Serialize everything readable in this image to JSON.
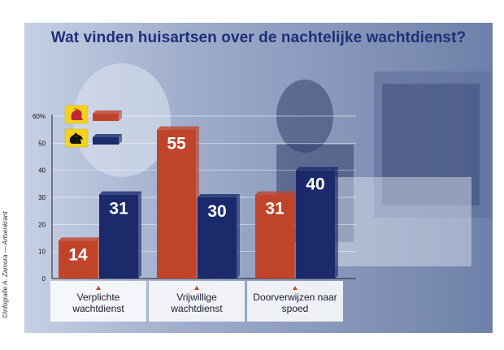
{
  "credit": "©Infografie A. Zamora — Artsenkrant",
  "colors": {
    "red": "#c0442a",
    "blue": "#1b2a6b",
    "title": "#1f2f7a"
  },
  "legend": [
    {
      "icon": "wallonia-rooster-flag-icon",
      "color": "#c0442a"
    },
    {
      "icon": "flanders-lion-flag-icon",
      "color": "#1b2a6b"
    }
  ],
  "chart_data": {
    "type": "bar",
    "title": "Wat vinden huisartsen over de nachtelijke wachtdienst?",
    "categories": [
      "Verplichte wachtdienst",
      "Vrijwillige wachtdienst",
      "Doorverwijzen naar spoed"
    ],
    "category_lines": [
      [
        "Verplichte",
        "wachtdienst"
      ],
      [
        "Vrijwillige",
        "wachtdienst"
      ],
      [
        "Doorverwijzen naar",
        "spoed"
      ]
    ],
    "series": [
      {
        "values": [
          14,
          55,
          31
        ],
        "color": "#c0442a"
      },
      {
        "values": [
          31,
          30,
          40
        ],
        "color": "#1b2a6b"
      }
    ],
    "ylim": [
      0,
      60
    ],
    "yticks": [
      0,
      10,
      20,
      30,
      40,
      50,
      60
    ],
    "ytick_labels": [
      "0",
      "10",
      "20",
      "30",
      "40",
      "50",
      "60%"
    ],
    "grid": true
  }
}
